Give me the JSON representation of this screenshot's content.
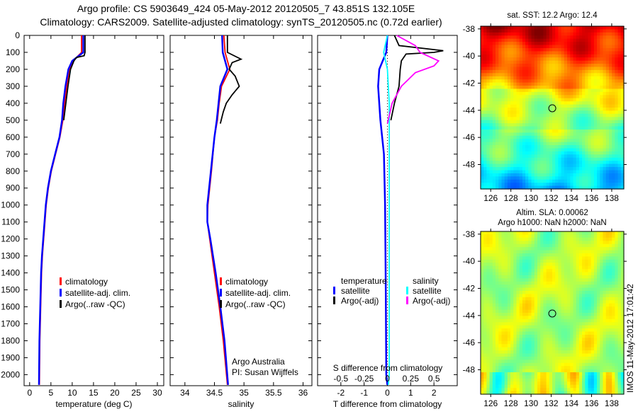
{
  "title_line1": "Argo profile: CS 5903649_424 05-May-2012 20120505_7 43.851S 132.105E",
  "title_line2": "Climatology: CARS2009. Satellite-adjusted climatology: synTS_20120505.nc (0.72d earlier)",
  "colors": {
    "climatology": "#ff0000",
    "satellite": "#0000ff",
    "argo": "#000000",
    "sal_satellite": "#00ffff",
    "sal_argo": "#ff00ff"
  },
  "chart_data": [
    {
      "type": "line",
      "xlabel": "temperature (deg C)",
      "ylabel": "",
      "xlim": [
        -1.3,
        31.5
      ],
      "ylim": [
        2065,
        0
      ],
      "xticks": [
        0,
        5,
        10,
        15,
        20,
        25,
        30
      ],
      "yticks": [
        0,
        100,
        200,
        300,
        400,
        500,
        600,
        700,
        800,
        900,
        1000,
        1100,
        1200,
        1300,
        1400,
        1500,
        1600,
        1700,
        1800,
        1900,
        2000
      ],
      "legend": [
        "climatology",
        "satellite-adj. clim.",
        "Argo(..raw -QC)"
      ],
      "series": [
        {
          "name": "climatology",
          "depth": [
            0,
            100,
            150,
            200,
            300,
            400,
            500,
            600,
            700,
            800,
            900,
            1000,
            1100,
            1200,
            1300,
            1400,
            1600,
            1800,
            2060
          ],
          "values": [
            12.2,
            12.2,
            10.2,
            9.3,
            8.7,
            8.2,
            7.8,
            7.1,
            6.1,
            5.1,
            4.4,
            3.9,
            3.6,
            3.3,
            3.0,
            2.8,
            2.6,
            2.4,
            2.3
          ]
        },
        {
          "name": "satellite-adj. clim.",
          "depth": [
            0,
            100,
            150,
            200,
            300,
            400,
            500,
            600,
            700,
            800,
            900,
            1000,
            1100,
            1200,
            1300,
            1400,
            1600,
            1800,
            2060
          ],
          "values": [
            12.6,
            12.6,
            10.0,
            9.1,
            8.4,
            7.9,
            7.6,
            7.0,
            6.0,
            5.0,
            4.3,
            3.8,
            3.5,
            3.2,
            2.9,
            2.7,
            2.5,
            2.3,
            2.2
          ]
        },
        {
          "name": "Argo(..raw -QC)",
          "depth": [
            0,
            100,
            120,
            130,
            150,
            200,
            300,
            400,
            500
          ],
          "values": [
            13.0,
            13.0,
            12.8,
            11.0,
            10.4,
            9.6,
            9.0,
            8.5,
            8.0
          ]
        }
      ]
    },
    {
      "type": "line",
      "xlabel": "salinity",
      "xlim": [
        33.75,
        36.15
      ],
      "ylim": [
        2065,
        0
      ],
      "xticks": [
        34,
        34.5,
        35,
        35.5,
        36
      ],
      "legend": [
        "climatology",
        "satellite-adj. clim.",
        "Argo(..raw -QC)"
      ],
      "annotation": [
        "Argo Australia",
        "PI: Susan Wijffels"
      ],
      "series": [
        {
          "name": "climatology",
          "depth": [
            0,
            100,
            200,
            300,
            400,
            500,
            600,
            800,
            1000,
            1100,
            1200,
            1400,
            1600,
            1800,
            2060
          ],
          "values": [
            34.66,
            34.68,
            34.76,
            34.62,
            34.58,
            34.55,
            34.5,
            34.45,
            34.39,
            34.38,
            34.42,
            34.5,
            34.58,
            34.65,
            34.72
          ]
        },
        {
          "name": "satellite-adj. clim.",
          "depth": [
            0,
            100,
            200,
            300,
            400,
            500,
            600,
            800,
            1000,
            1100,
            1200,
            1400,
            1600,
            1800,
            2060
          ],
          "values": [
            34.63,
            34.64,
            34.72,
            34.6,
            34.57,
            34.54,
            34.5,
            34.44,
            34.38,
            34.38,
            34.43,
            34.52,
            34.6,
            34.67,
            34.73
          ]
        },
        {
          "name": "Argo(..raw -QC)",
          "depth": [
            0,
            100,
            140,
            160,
            200,
            240,
            300,
            350,
            400,
            450,
            520
          ],
          "values": [
            34.72,
            34.72,
            34.95,
            34.8,
            34.75,
            34.85,
            34.92,
            34.8,
            34.7,
            34.65,
            34.6
          ]
        }
      ]
    },
    {
      "type": "line",
      "xlabel": "T difference from climatology",
      "x2label": "S difference from climatology",
      "xlim": [
        -3,
        3
      ],
      "ylim": [
        2065,
        0
      ],
      "xticks": [
        -2,
        -1,
        0,
        1,
        2
      ],
      "x2ticks": [
        "-0.5",
        "-0.25",
        "0",
        "0.25",
        "0.5"
      ],
      "legend_temperature": {
        "title": "temperature",
        "items": [
          "satellite",
          "Argo(-adj)"
        ]
      },
      "legend_salinity": {
        "title": "salinity",
        "items": [
          "satellite",
          "Argo(-adj)"
        ]
      },
      "series": [
        {
          "name": "T satellite",
          "depth": [
            0,
            100,
            150,
            200,
            300,
            400,
            500,
            700,
            1000,
            1500,
            2000,
            2060
          ],
          "values": [
            0.0,
            -0.05,
            -0.2,
            -0.35,
            -0.4,
            -0.35,
            -0.3,
            -0.15,
            -0.1,
            -0.07,
            -0.05,
            0
          ]
        },
        {
          "name": "T Argo(-adj)",
          "depth": [
            0,
            60,
            90,
            100,
            110,
            150,
            200,
            300,
            400,
            500
          ],
          "values": [
            0.3,
            0.5,
            2.4,
            2.0,
            0.8,
            0.6,
            0.55,
            0.5,
            0.3,
            0.15
          ]
        },
        {
          "name": "S satellite",
          "depth": [
            0,
            100,
            200,
            400,
            700,
            1000,
            1500,
            2000,
            2060
          ],
          "values": [
            0.0,
            -0.04,
            0.0,
            0.02,
            0.02,
            0.02,
            0.02,
            0.02,
            0.01
          ]
        },
        {
          "name": "S Argo(-adj)",
          "depth": [
            0,
            60,
            100,
            150,
            180,
            220,
            300,
            400,
            520
          ],
          "values": [
            0.1,
            0.3,
            0.35,
            0.55,
            0.5,
            0.3,
            0.15,
            0.05,
            0.0
          ]
        }
      ]
    },
    {
      "type": "heatmap",
      "title": "sat. SST: 12.2 Argo: 12.4",
      "xticks": [
        126,
        128,
        130,
        132,
        134,
        136,
        138
      ],
      "yticks": [
        -38,
        -40,
        -42,
        -44,
        -46,
        -48
      ],
      "xlim": [
        125,
        139.2
      ],
      "ylim": [
        -49.8,
        -37.8
      ],
      "marker": [
        132.105,
        -43.851
      ]
    },
    {
      "type": "heatmap",
      "title_line1": "Altim. SLA: 0.00062",
      "title_line2": "Argo h1000: NaN h2000: NaN",
      "xticks": [
        126,
        128,
        130,
        132,
        134,
        136,
        138
      ],
      "yticks": [
        -38,
        -40,
        -42,
        -44,
        -46,
        -48
      ],
      "xlim": [
        125,
        139.2
      ],
      "ylim": [
        -49.8,
        -37.8
      ],
      "marker": [
        132.105,
        -43.851
      ]
    }
  ],
  "side_stamp": "IMOS 11-May-2012 17:01:42"
}
